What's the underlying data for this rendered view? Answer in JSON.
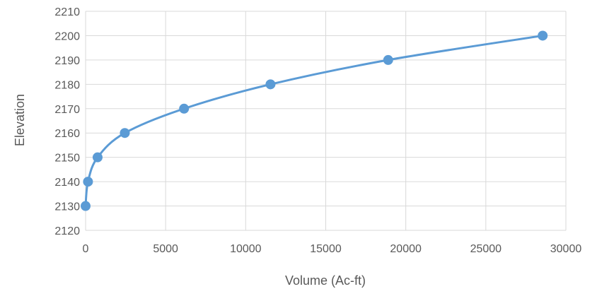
{
  "chart_data": {
    "type": "scatter",
    "title": "",
    "xlabel": "Volume (Ac-ft)",
    "ylabel": "Elevation",
    "xlim": [
      0,
      30000
    ],
    "ylim": [
      2120,
      2210
    ],
    "x_ticks": [
      0,
      5000,
      10000,
      15000,
      20000,
      25000,
      30000
    ],
    "y_ticks": [
      2120,
      2130,
      2140,
      2150,
      2160,
      2170,
      2180,
      2190,
      2200,
      2210
    ],
    "grid": true,
    "legend": "none",
    "line_style": "smoothed",
    "color": "#5b9bd5",
    "series": [
      {
        "points": [
          {
            "x": 0,
            "y": 2130
          },
          {
            "x": 150,
            "y": 2140
          },
          {
            "x": 750,
            "y": 2150
          },
          {
            "x": 2450,
            "y": 2160
          },
          {
            "x": 6150,
            "y": 2170
          },
          {
            "x": 11550,
            "y": 2180
          },
          {
            "x": 18900,
            "y": 2190
          },
          {
            "x": 28550,
            "y": 2200
          }
        ]
      }
    ]
  }
}
